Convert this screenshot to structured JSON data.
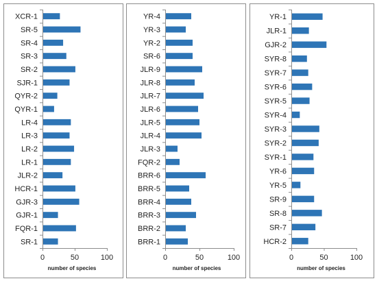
{
  "chart_data": [
    {
      "type": "bar",
      "orientation": "horizontal",
      "categories": [
        "XCR-1",
        "SR-5",
        "SR-4",
        "SR-3",
        "SR-2",
        "SJR-1",
        "QYR-2",
        "QYR-1",
        "LR-4",
        "LR-3",
        "LR-2",
        "LR-1",
        "JLR-2",
        "HCR-1",
        "GJR-3",
        "GJR-1",
        "FQR-1",
        "SR-1"
      ],
      "values": [
        27,
        59,
        32,
        37,
        51,
        42,
        23,
        18,
        44,
        42,
        49,
        44,
        31,
        51,
        57,
        24,
        52,
        24
      ],
      "xlabel": "number of species",
      "xlim": [
        0,
        100
      ],
      "xticks": [
        "0",
        "50",
        "100"
      ],
      "color": "#2e75b6"
    },
    {
      "type": "bar",
      "orientation": "horizontal",
      "categories": [
        "YR-4",
        "YR-3",
        "YR-2",
        "SR-6",
        "JLR-9",
        "JLR-8",
        "JLR-7",
        "JLR-6",
        "JLR-5",
        "JLR-4",
        "JLR-3",
        "FQR-2",
        "BRR-6",
        "BRR-5",
        "BRR-4",
        "BRR-3",
        "BRR-2",
        "BRR-1"
      ],
      "values": [
        38,
        30,
        40,
        40,
        54,
        43,
        56,
        48,
        50,
        53,
        18,
        21,
        59,
        35,
        38,
        45,
        30,
        33
      ],
      "xlabel": "number of species",
      "xlim": [
        0,
        100
      ],
      "xticks": [
        "0",
        "50",
        "100"
      ],
      "color": "#2e75b6"
    },
    {
      "type": "bar",
      "orientation": "horizontal",
      "categories": [
        "YR-1",
        "JLR-1",
        "GJR-2",
        "SYR-8",
        "SYR-7",
        "SYR-6",
        "SYR-5",
        "SYR-4",
        "SYR-3",
        "SYR-2",
        "SYR-1",
        "YR-6",
        "YR-5",
        "SR-9",
        "SR-8",
        "SR-7",
        "HCR-2"
      ],
      "values": [
        48,
        27,
        54,
        24,
        26,
        32,
        28,
        13,
        43,
        42,
        34,
        35,
        14,
        35,
        47,
        37,
        26
      ],
      "xlabel": "number of species",
      "xlim": [
        0,
        100
      ],
      "xticks": [
        "0",
        "50",
        "100"
      ],
      "color": "#2e75b6"
    }
  ]
}
